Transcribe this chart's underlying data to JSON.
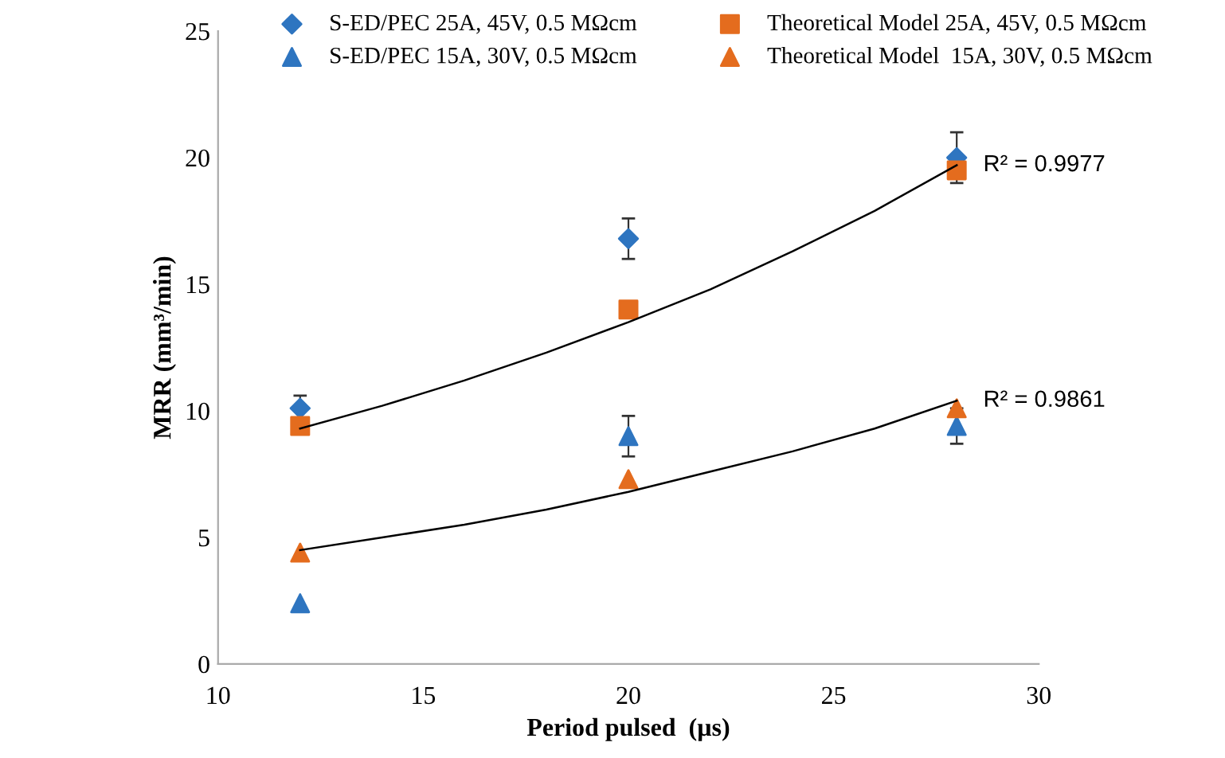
{
  "chart_data": {
    "type": "scatter",
    "xlabel": "Period pulsed  (µs)",
    "ylabel": "MRR (mm³/min)",
    "xlim": [
      10,
      30
    ],
    "xticks": [
      10,
      15,
      20,
      25,
      30
    ],
    "ylim": [
      0,
      25
    ],
    "yticks": [
      0,
      5,
      10,
      15,
      20,
      25
    ],
    "grid": false,
    "legend": "top",
    "x": [
      12,
      20,
      28
    ],
    "series": [
      {
        "name": "S-ED/PEC 25A, 45V, 0.5 MΩcm",
        "color": "#2e75c0",
        "marker": "diamond",
        "values": [
          10.1,
          16.8,
          20.0
        ],
        "errors": [
          0.5,
          0.8,
          1.0
        ]
      },
      {
        "name": "Theoretical Model 25A, 45V, 0.5 MΩcm",
        "color": "#e46c1e",
        "marker": "square",
        "values": [
          9.4,
          14.0,
          19.5
        ]
      },
      {
        "name": "S-ED/PEC 15A, 30V, 0.5 MΩcm",
        "color": "#2e75c0",
        "marker": "triangle",
        "values": [
          2.4,
          9.0,
          9.4
        ],
        "errors": [
          null,
          0.8,
          0.7
        ]
      },
      {
        "name": "Theoretical Model  15A, 30V, 0.5 MΩcm",
        "color": "#e46c1e",
        "marker": "triangle",
        "values": [
          4.4,
          7.3,
          10.1
        ]
      },
      {
        "type": "line",
        "color": "#000000",
        "marker": "none",
        "x": [
          12,
          14,
          16,
          18,
          20,
          22,
          24,
          26,
          28
        ],
        "values": [
          9.3,
          10.2,
          11.2,
          12.3,
          13.5,
          14.8,
          16.3,
          17.9,
          19.7
        ]
      },
      {
        "type": "line",
        "color": "#000000",
        "marker": "none",
        "x": [
          12,
          14,
          16,
          18,
          20,
          22,
          24,
          26,
          28
        ],
        "values": [
          4.5,
          5.0,
          5.5,
          6.1,
          6.8,
          7.6,
          8.4,
          9.3,
          10.4
        ]
      }
    ],
    "annotations": [
      {
        "text": "R² = 0.9977",
        "x": 28,
        "y": 19.7
      },
      {
        "text": "R² = 0.9861",
        "x": 28,
        "y": 10.4
      }
    ]
  }
}
